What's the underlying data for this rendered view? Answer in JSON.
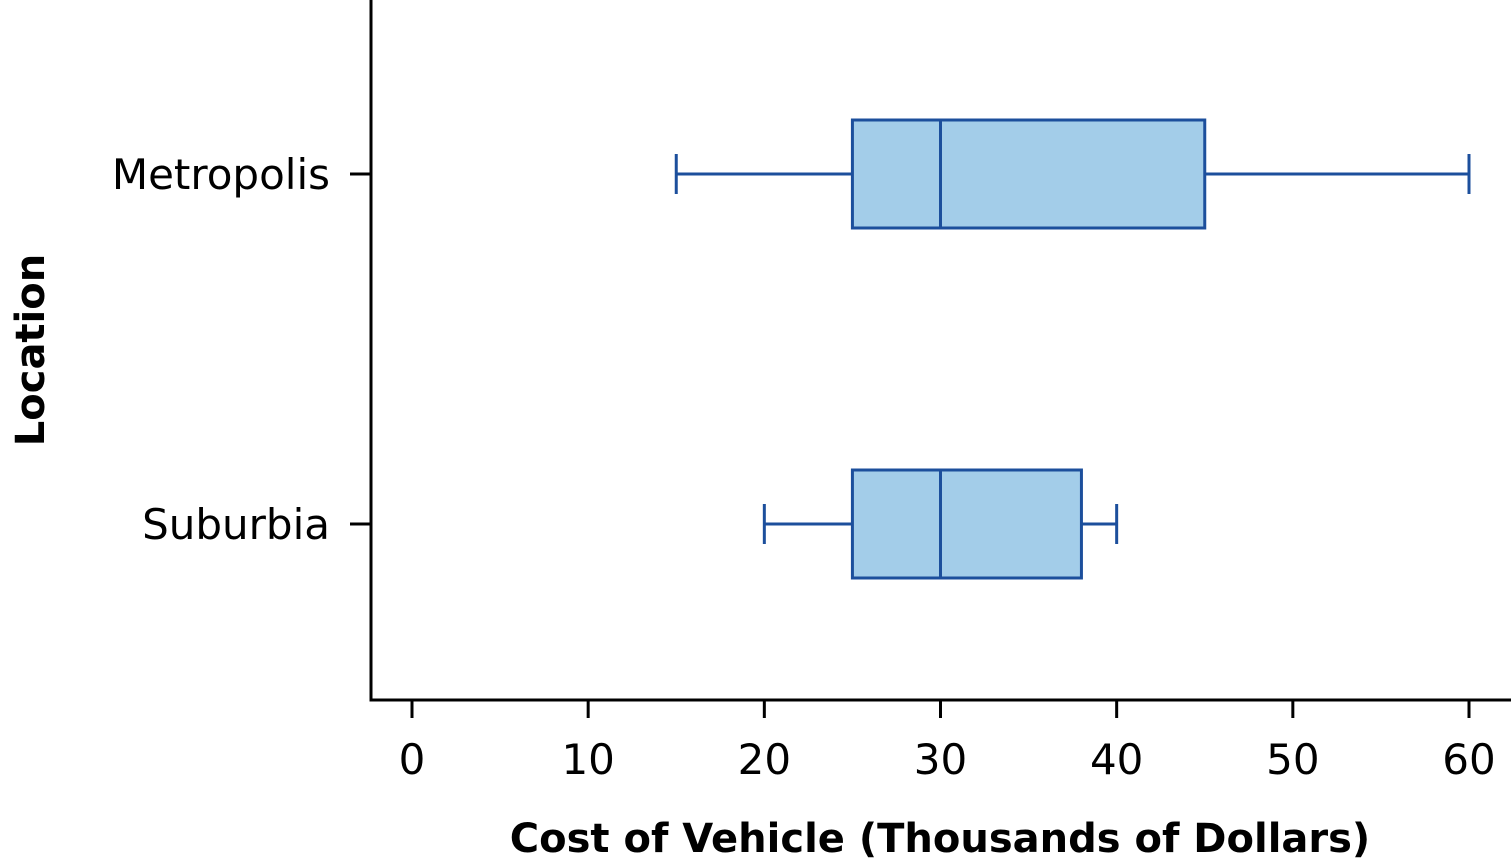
{
  "chart_data": {
    "type": "boxplot",
    "orientation": "horizontal",
    "xlabel": "Cost of Vehicle (Thousands of Dollars)",
    "ylabel": "Location",
    "xlim": [
      0,
      60
    ],
    "xticks": [
      0,
      10,
      20,
      30,
      40,
      50,
      60
    ],
    "grid": false,
    "categories": [
      "Metropolis",
      "Suburbia"
    ],
    "boxes": [
      {
        "category": "Metropolis",
        "min": 15,
        "q1": 25,
        "median": 30,
        "q3": 45,
        "max": 60
      },
      {
        "category": "Suburbia",
        "min": 20,
        "q1": 25,
        "median": 30,
        "q3": 38,
        "max": 40
      }
    ],
    "colors": {
      "box_fill": "#a3cde9",
      "box_stroke": "#1c4f9c",
      "axis": "#000000"
    }
  }
}
